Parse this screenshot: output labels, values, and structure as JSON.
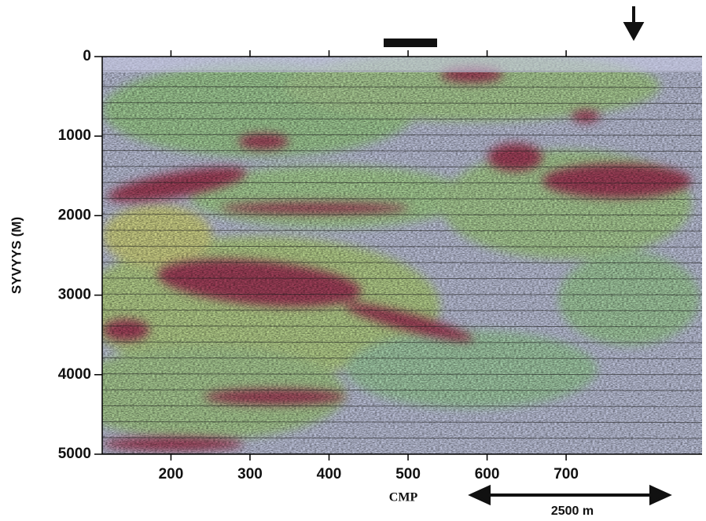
{
  "chart_data": {
    "type": "seismic-section",
    "x_label": "CMP",
    "y_label": "SYVYYS (M)",
    "xlim": [
      113,
      872
    ],
    "xticks": [
      200,
      300,
      400,
      500,
      600,
      700
    ],
    "ylim": [
      0,
      5000
    ],
    "yticks": [
      0,
      1000,
      2000,
      3000,
      4000,
      5000
    ],
    "y_inverted": true,
    "scale_bar_label": "2500 m"
  }
}
